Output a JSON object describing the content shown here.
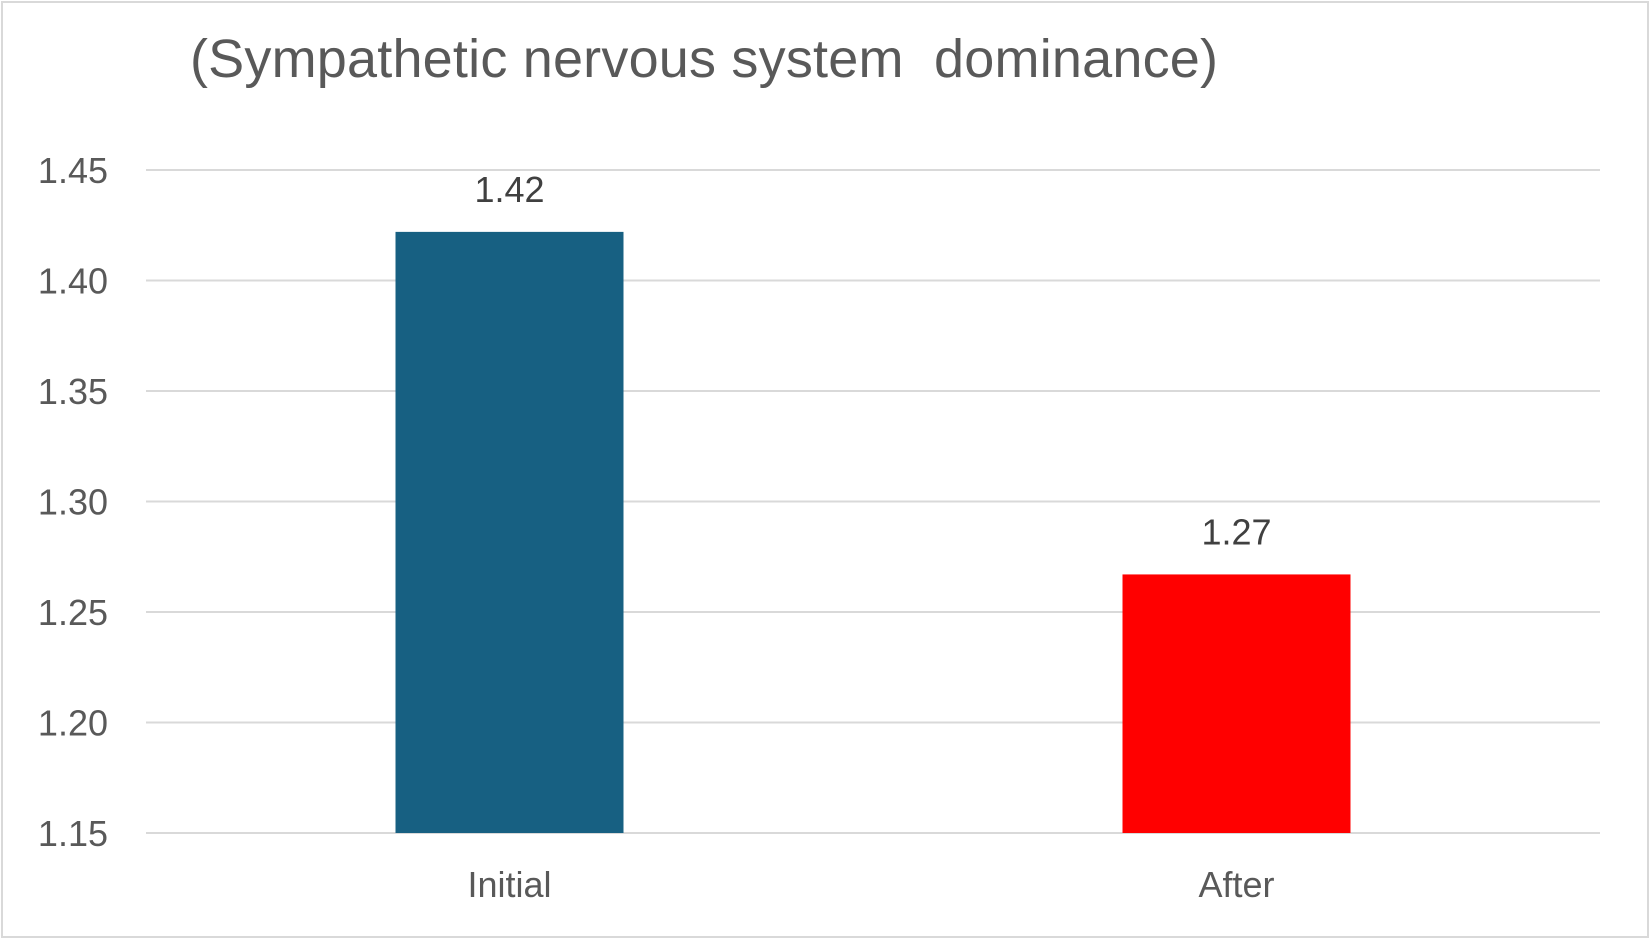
{
  "chart_data": {
    "type": "bar",
    "title": "(Sympathetic nervous system  dominance)",
    "categories": [
      "Initial",
      "After"
    ],
    "values": [
      1.422,
      1.267
    ],
    "data_labels": [
      "1.42",
      "1.27"
    ],
    "ylim": [
      1.15,
      1.45
    ],
    "yticks": [
      1.15,
      1.2,
      1.25,
      1.3,
      1.35,
      1.4,
      1.45
    ],
    "ytick_labels": [
      "1.15",
      "1.20",
      "1.25",
      "1.30",
      "1.35",
      "1.40",
      "1.45"
    ],
    "xlabel": "",
    "ylabel": "",
    "grid": true,
    "legend": "none",
    "bar_colors": [
      "#176082",
      "#ff0000"
    ],
    "colors": {
      "grid": "#d9d9d9",
      "tick_text": "#595959",
      "label_text": "#404040"
    }
  }
}
